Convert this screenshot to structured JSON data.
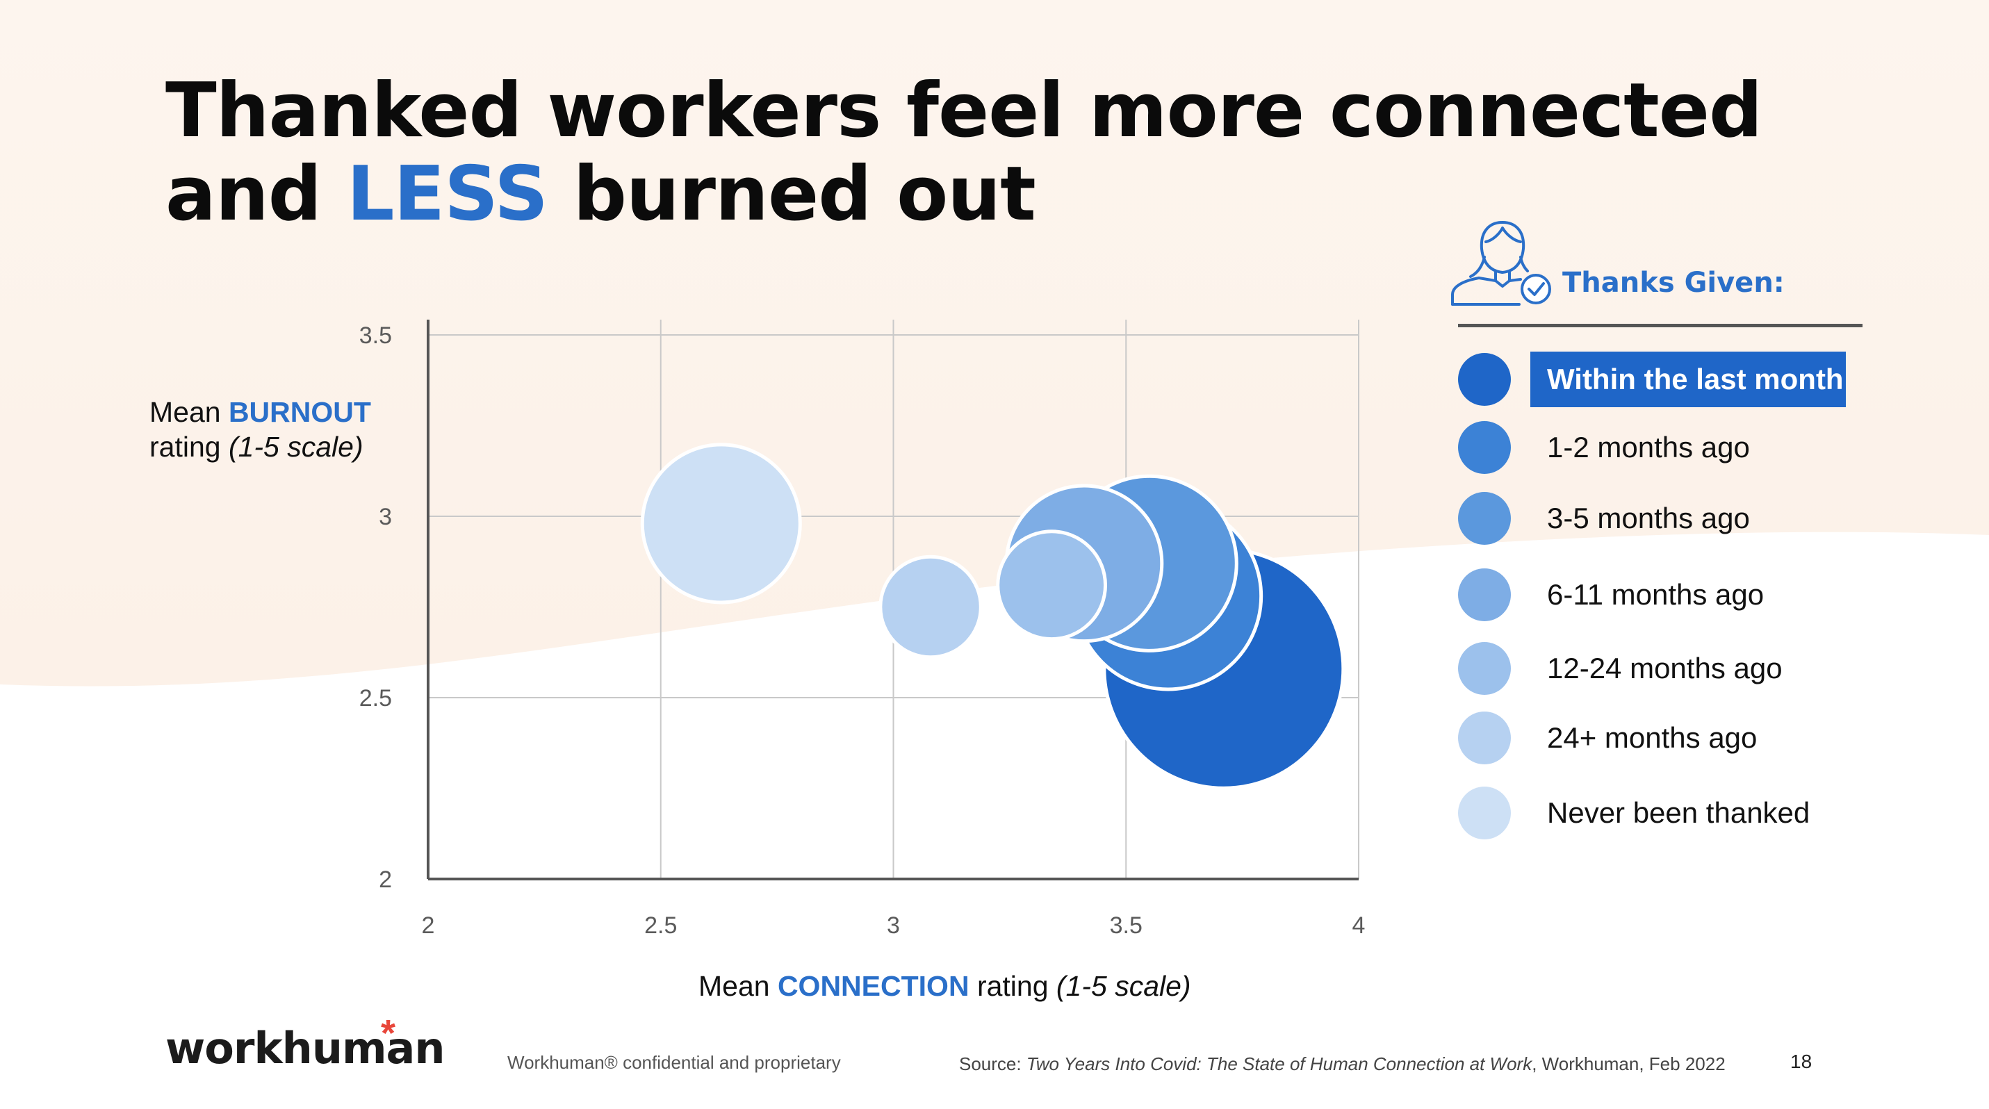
{
  "title": {
    "line1": "Thanked workers feel more connected",
    "line2_start": "and ",
    "line2_accent": "LESS",
    "line2_end": " burned out"
  },
  "y_axis_label": {
    "prefix": "Mean ",
    "highlight": "BURNOUT",
    "line2_start": "rating ",
    "line2_italic": "(1-5 scale)"
  },
  "x_axis_label": {
    "prefix": "Mean ",
    "highlight": "CONNECTION",
    "middle": " rating ",
    "italic": "(1-5 scale)"
  },
  "legend": {
    "icon": "person-check-icon",
    "title": "Thanks Given:",
    "items": [
      {
        "label": "Within the last month",
        "color": "#1f66c8",
        "active": true
      },
      {
        "label": "1-2 months ago",
        "color": "#3c82d6",
        "active": false
      },
      {
        "label": "3-5 months ago",
        "color": "#5b98dd",
        "active": false
      },
      {
        "label": "6-11 months ago",
        "color": "#7eade5",
        "active": false
      },
      {
        "label": "12-24 months ago",
        "color": "#9cc1ec",
        "active": false
      },
      {
        "label": "24+ months ago",
        "color": "#b6d1f1",
        "active": false
      },
      {
        "label": "Never been thanked",
        "color": "#cde0f5",
        "active": false
      }
    ]
  },
  "chart_data": {
    "type": "scatter",
    "variant": "bubble",
    "xlim": [
      2,
      4
    ],
    "ylim": [
      2,
      3.5
    ],
    "x_ticks": [
      "2",
      "2.5",
      "3",
      "3.5",
      "4"
    ],
    "y_ticks": [
      "2",
      "2.5",
      "3",
      "3.5"
    ],
    "grid": true,
    "legend_position": "right",
    "points": [
      {
        "series": "Never been thanked",
        "x": 2.63,
        "y": 2.98,
        "size": 0.66,
        "color": "#cde0f5"
      },
      {
        "series": "24+ months ago",
        "x": 3.08,
        "y": 2.75,
        "size": 0.42,
        "color": "#b6d1f1"
      },
      {
        "series": "Within the last month",
        "x": 3.71,
        "y": 2.58,
        "size": 1.0,
        "color": "#1f66c8"
      },
      {
        "series": "1-2 months ago",
        "x": 3.59,
        "y": 2.78,
        "size": 0.78,
        "color": "#3c82d6"
      },
      {
        "series": "3-5 months ago",
        "x": 3.55,
        "y": 2.87,
        "size": 0.73,
        "color": "#5b98dd"
      },
      {
        "series": "6-11 months ago",
        "x": 3.41,
        "y": 2.87,
        "size": 0.65,
        "color": "#7eade5"
      },
      {
        "series": "12-24 months ago",
        "x": 3.34,
        "y": 2.81,
        "size": 0.45,
        "color": "#9cc1ec"
      }
    ]
  },
  "footer": {
    "logo": "workhuman",
    "logo_mark": "*",
    "confidential": "Workhuman® confidential and proprietary",
    "source_prefix": "Source: ",
    "source_title": "Two Years Into Covid: The State of Human Connection at Work",
    "source_suffix": ", Workhuman, Feb 2022",
    "page_number": "18"
  }
}
